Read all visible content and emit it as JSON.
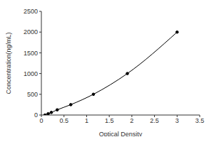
{
  "chart_data": {
    "type": "line",
    "x_label": "Optical Density",
    "y_label": "Concentration(ng/mL)",
    "x": [
      0.08,
      0.15,
      0.22,
      0.35,
      0.65,
      1.15,
      1.9,
      3.0
    ],
    "values": [
      0,
      31.25,
      62.5,
      125,
      250,
      500,
      1000,
      2000
    ],
    "color": "#000000",
    "marker": "circle",
    "line_style": "solid",
    "xlim": [
      0,
      3.5
    ],
    "xticks": [
      0,
      0.5,
      1,
      1.5,
      2,
      2.5,
      3,
      3.5
    ],
    "ylim": [
      0,
      2500
    ],
    "yticks": [
      0,
      500,
      1000,
      1500,
      2000,
      2500
    ],
    "grid": false
  }
}
